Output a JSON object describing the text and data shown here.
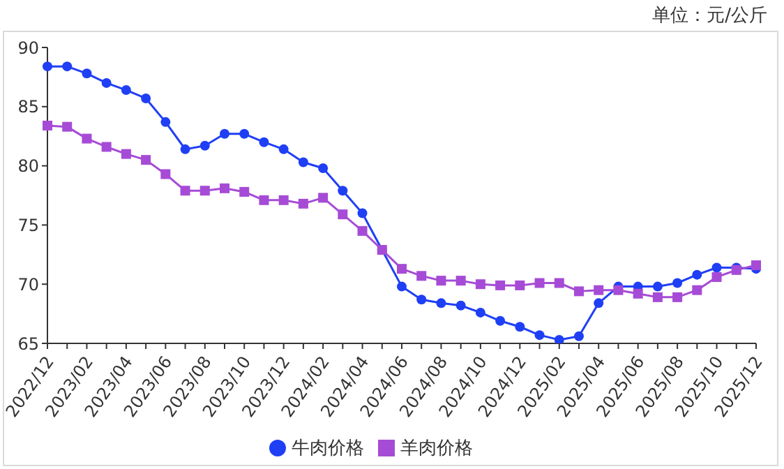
{
  "chart_data": {
    "type": "line",
    "annotations": [
      "单位：元/公斤"
    ],
    "categories": [
      "2022/12",
      null,
      "2023/02",
      null,
      "2023/04",
      null,
      "2023/06",
      null,
      "2023/08",
      null,
      "2023/10",
      null,
      "2023/12",
      null,
      "2024/02",
      null,
      "2024/04",
      null,
      "2024/06",
      null,
      "2024/08",
      null,
      "2024/10",
      null,
      "2024/12",
      null,
      "2025/02",
      null,
      "2025/04",
      null,
      "2025/06",
      null,
      "2025/08",
      null,
      "2025/10",
      null,
      "2025/12"
    ],
    "series": [
      {
        "name": "牛肉价格",
        "color": "#1f3ff5",
        "marker": "circle",
        "values": [
          88.4,
          88.4,
          87.8,
          87.0,
          86.4,
          85.7,
          83.7,
          81.4,
          81.7,
          82.7,
          82.7,
          82.0,
          81.4,
          80.3,
          79.8,
          77.9,
          76.0,
          72.9,
          69.8,
          68.7,
          68.4,
          68.2,
          67.6,
          66.9,
          66.4,
          65.7,
          65.3,
          65.6,
          68.4,
          69.8,
          69.8,
          69.8,
          70.1,
          70.8,
          71.4,
          71.4,
          71.3
        ]
      },
      {
        "name": "羊肉价格",
        "color": "#a64bd6",
        "marker": "square",
        "values": [
          83.4,
          83.3,
          82.3,
          81.6,
          81.0,
          80.5,
          79.3,
          77.9,
          77.9,
          78.1,
          77.8,
          77.1,
          77.1,
          76.8,
          77.3,
          75.9,
          74.5,
          72.9,
          71.3,
          70.7,
          70.3,
          70.3,
          70.0,
          69.9,
          69.9,
          70.1,
          70.1,
          69.4,
          69.5,
          69.5,
          69.2,
          68.9,
          68.9,
          69.5,
          70.6,
          71.2,
          71.6
        ]
      }
    ],
    "ylim": [
      65,
      90
    ],
    "yticks": [
      65,
      70,
      75,
      80,
      85,
      90
    ],
    "grid": false,
    "legend": "bottom"
  }
}
